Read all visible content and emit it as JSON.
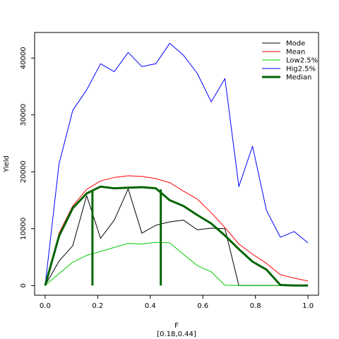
{
  "chart_data": {
    "type": "line",
    "xlabel": "F",
    "xlabel_sub": "[0.18,0.44]",
    "ylabel": "Yield",
    "xlim": [
      -0.04,
      1.04
    ],
    "ylim": [
      -1700,
      44500
    ],
    "x_ticks": [
      0.0,
      0.2,
      0.4,
      0.6,
      0.8,
      1.0
    ],
    "x_tick_labels": [
      "0.0",
      "0.2",
      "0.4",
      "0.6",
      "0.8",
      "1.0"
    ],
    "y_ticks": [
      0,
      10000,
      20000,
      30000,
      40000
    ],
    "y_tick_labels": [
      "0",
      "10000",
      "20000",
      "30000",
      "40000"
    ],
    "grid": false,
    "legend_position": "top-right",
    "x": [
      0,
      0.053,
      0.105,
      0.158,
      0.211,
      0.263,
      0.316,
      0.368,
      0.421,
      0.474,
      0.526,
      0.579,
      0.632,
      0.684,
      0.737,
      0.789,
      0.842,
      0.895,
      0.947,
      1.0
    ],
    "series": [
      {
        "name": "Mode",
        "color": "#000000",
        "width": 1,
        "values": [
          0,
          4300,
          7000,
          15800,
          8300,
          11500,
          17000,
          9200,
          10600,
          11200,
          11500,
          9800,
          10100,
          10000,
          0,
          0,
          0,
          0,
          0,
          0
        ]
      },
      {
        "name": "Mean",
        "color": "#ff0000",
        "width": 1,
        "values": [
          0,
          9200,
          14000,
          16900,
          18400,
          19000,
          19300,
          19200,
          18800,
          18100,
          16600,
          15200,
          12800,
          10200,
          7300,
          5500,
          3900,
          1900,
          1300,
          800
        ]
      },
      {
        "name": "Low2.5%",
        "color": "#00cc00",
        "width": 1,
        "values": [
          0,
          2100,
          4100,
          5300,
          6000,
          6700,
          7400,
          7300,
          7600,
          7500,
          5500,
          3500,
          2400,
          50,
          0,
          0,
          0,
          0,
          0,
          0
        ]
      },
      {
        "name": "Hig2.5%",
        "color": "#0000ff",
        "width": 1,
        "values": [
          0,
          21400,
          30800,
          34400,
          39000,
          37600,
          41000,
          38500,
          39000,
          42600,
          40500,
          37300,
          32300,
          36400,
          17400,
          24500,
          13200,
          8500,
          9500,
          7500
        ]
      },
      {
        "name": "Median",
        "color": "#006400",
        "width": 3,
        "values": [
          0,
          8700,
          13600,
          16200,
          17400,
          17100,
          17200,
          17300,
          17100,
          15000,
          14000,
          12400,
          10900,
          8800,
          6400,
          4200,
          2800,
          100,
          0,
          0
        ]
      }
    ],
    "vertical_lines": [
      {
        "x": 0.18,
        "y_top": 16600,
        "color": "#006400"
      },
      {
        "x": 0.44,
        "y_top": 16900,
        "color": "#006400"
      }
    ]
  }
}
